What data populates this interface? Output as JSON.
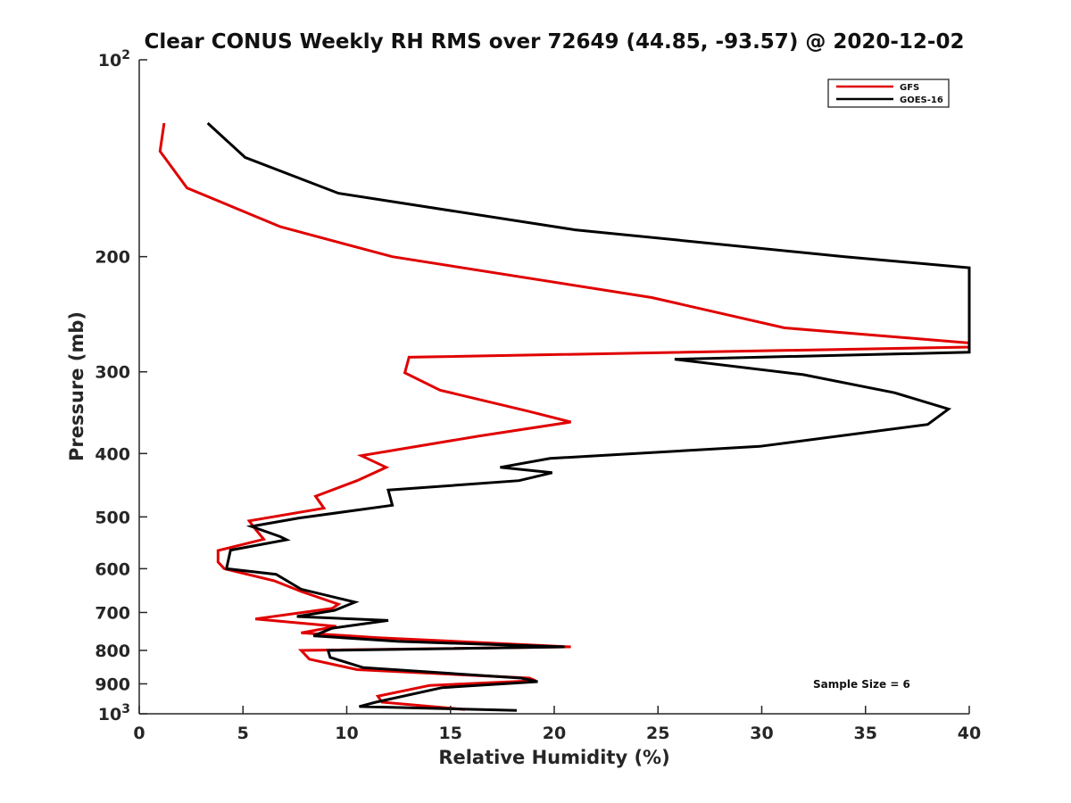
{
  "chart_data": {
    "type": "line",
    "title": "Clear CONUS Weekly RH RMS over 72649 (44.85, -93.57) @ 2020-12-02",
    "xlabel": "Relative Humidity (%)",
    "ylabel": "Pressure (mb)",
    "xlim": [
      0,
      40
    ],
    "ylim": [
      100,
      1000
    ],
    "y_scale": "log",
    "y_reversed": true,
    "x_ticks": [
      0,
      5,
      10,
      15,
      20,
      25,
      30,
      35,
      40
    ],
    "x_tick_labels": [
      "0",
      "5",
      "10",
      "15",
      "20",
      "25",
      "30",
      "35",
      "40"
    ],
    "y_ticks": [
      100,
      200,
      300,
      400,
      500,
      600,
      700,
      800,
      900,
      1000
    ],
    "y_tick_labels": [
      {
        "base": "10",
        "exp": "2"
      },
      {
        "base": "200",
        "exp": ""
      },
      {
        "base": "300",
        "exp": ""
      },
      {
        "base": "400",
        "exp": ""
      },
      {
        "base": "500",
        "exp": ""
      },
      {
        "base": "600",
        "exp": ""
      },
      {
        "base": "700",
        "exp": ""
      },
      {
        "base": "800",
        "exp": ""
      },
      {
        "base": "900",
        "exp": ""
      },
      {
        "base": "10",
        "exp": "3"
      }
    ],
    "legend_position": "top-right",
    "annotation": "Sample Size = 6",
    "series": [
      {
        "name": "GFS",
        "color": "#e00000",
        "points": [
          [
            1.2,
            125
          ],
          [
            1.0,
            138
          ],
          [
            2.3,
            157
          ],
          [
            6.8,
            180
          ],
          [
            12.2,
            200
          ],
          [
            24.7,
            231
          ],
          [
            31.1,
            257
          ],
          [
            40.1,
            271
          ],
          [
            40.3,
            275
          ],
          [
            13.0,
            285
          ],
          [
            12.8,
            301
          ],
          [
            14.5,
            320
          ],
          [
            18.8,
            345
          ],
          [
            20.8,
            358
          ],
          [
            16.4,
            376
          ],
          [
            10.7,
            403
          ],
          [
            11.9,
            420
          ],
          [
            10.5,
            440
          ],
          [
            8.5,
            465
          ],
          [
            8.9,
            485
          ],
          [
            5.3,
            507
          ],
          [
            5.6,
            522
          ],
          [
            6.0,
            541
          ],
          [
            3.8,
            563
          ],
          [
            3.8,
            586
          ],
          [
            4.1,
            600
          ],
          [
            6.5,
            626
          ],
          [
            7.8,
            650
          ],
          [
            9.6,
            680
          ],
          [
            9.3,
            690
          ],
          [
            5.6,
            716
          ],
          [
            9.5,
            735
          ],
          [
            7.8,
            752
          ],
          [
            11.5,
            765
          ],
          [
            20.8,
            790
          ],
          [
            7.8,
            800
          ],
          [
            8.2,
            825
          ],
          [
            10.5,
            856
          ],
          [
            18.8,
            882
          ],
          [
            19.1,
            890
          ],
          [
            14.0,
            905
          ],
          [
            11.5,
            940
          ],
          [
            11.7,
            960
          ],
          [
            15.7,
            985
          ]
        ]
      },
      {
        "name": "GOES-16",
        "color": "#000000",
        "points": [
          [
            3.3,
            125
          ],
          [
            5.1,
            141
          ],
          [
            9.6,
            160
          ],
          [
            21.0,
            182
          ],
          [
            34.0,
            200
          ],
          [
            40.1,
            208
          ],
          [
            40.2,
            280
          ],
          [
            25.8,
            287
          ],
          [
            32.0,
            303
          ],
          [
            36.4,
            323
          ],
          [
            39.0,
            342
          ],
          [
            38.0,
            361
          ],
          [
            29.9,
            390
          ],
          [
            19.8,
            407
          ],
          [
            17.4,
            420
          ],
          [
            19.9,
            428
          ],
          [
            18.3,
            440
          ],
          [
            12.0,
            455
          ],
          [
            12.2,
            480
          ],
          [
            7.7,
            502
          ],
          [
            5.4,
            517
          ],
          [
            6.8,
            536
          ],
          [
            7.1,
            542
          ],
          [
            4.4,
            562
          ],
          [
            4.2,
            600
          ],
          [
            6.6,
            612
          ],
          [
            7.8,
            645
          ],
          [
            10.4,
            675
          ],
          [
            9.4,
            695
          ],
          [
            7.6,
            710
          ],
          [
            12.0,
            720
          ],
          [
            9.3,
            740
          ],
          [
            8.4,
            760
          ],
          [
            12.5,
            775
          ],
          [
            20.5,
            790
          ],
          [
            9.1,
            800
          ],
          [
            9.2,
            820
          ],
          [
            10.8,
            850
          ],
          [
            18.4,
            882
          ],
          [
            19.2,
            893
          ],
          [
            14.6,
            912
          ],
          [
            11.4,
            960
          ],
          [
            10.6,
            975
          ],
          [
            18.2,
            988
          ]
        ]
      }
    ]
  }
}
